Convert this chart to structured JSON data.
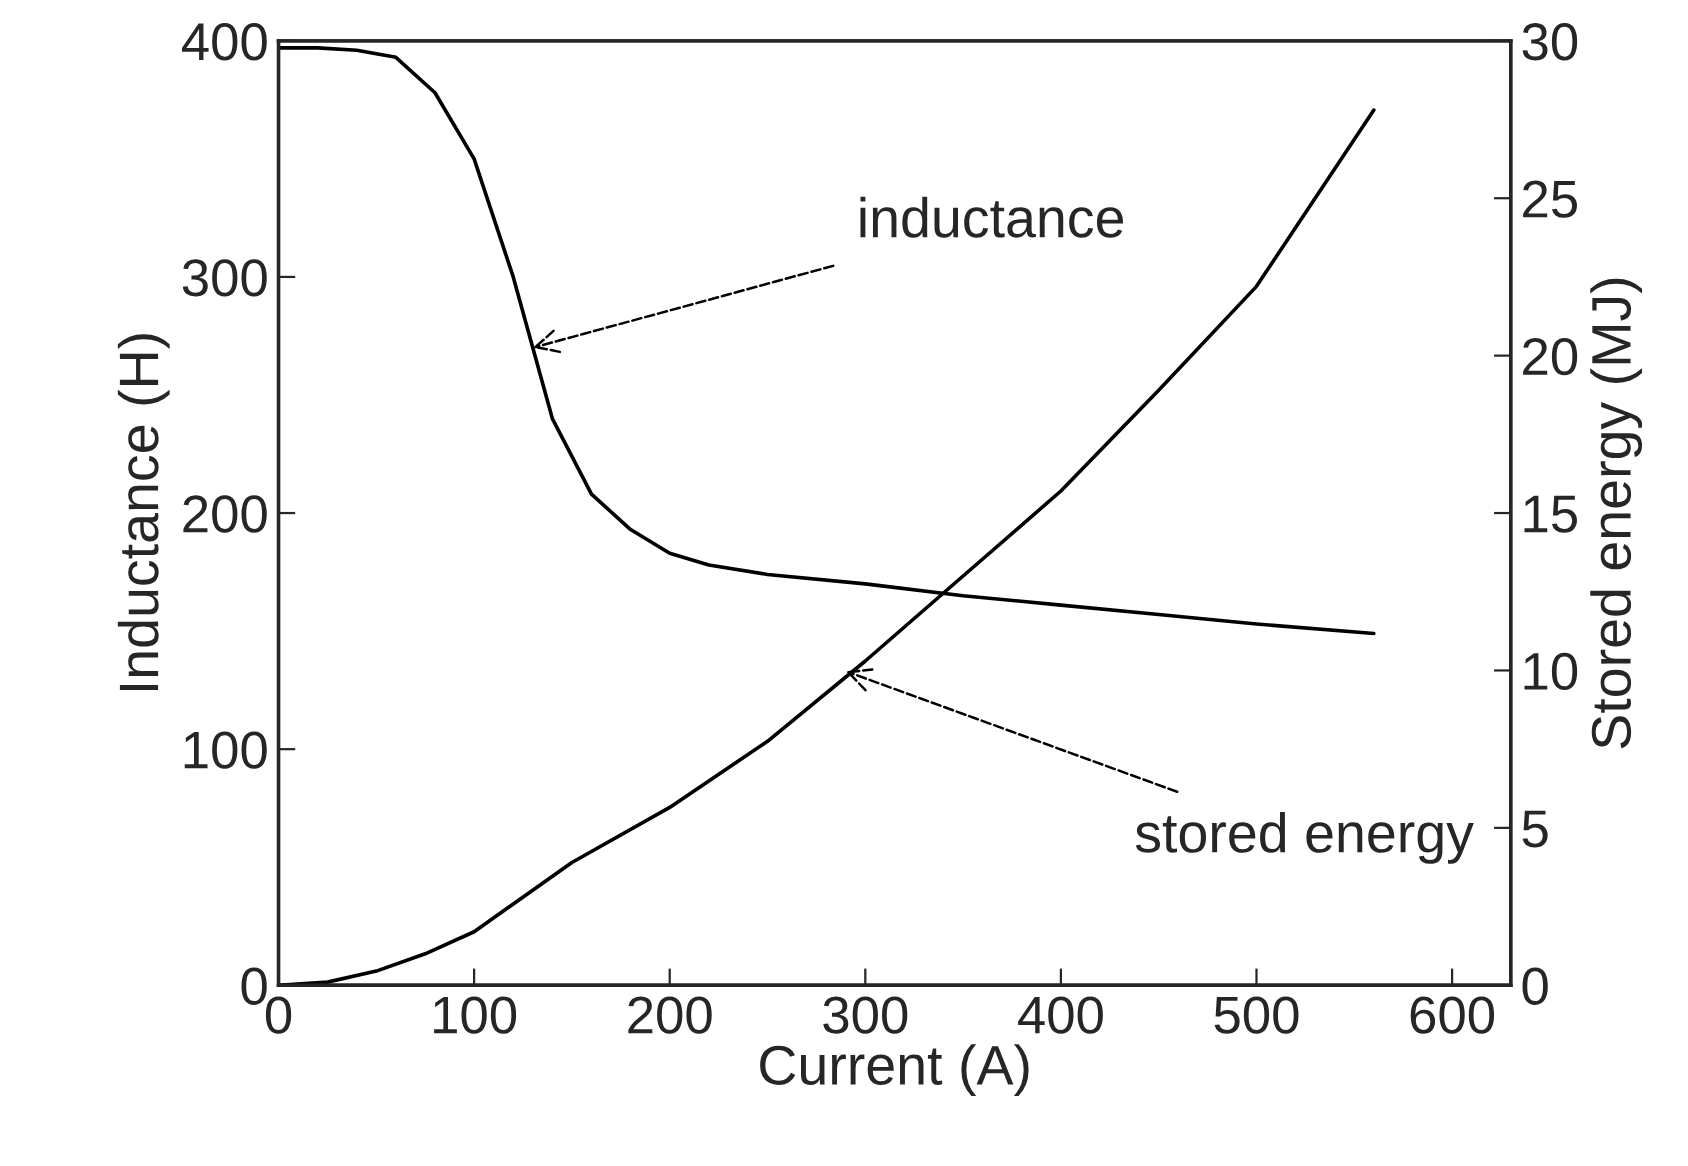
{
  "chart_data": {
    "type": "line",
    "xlabel": "Current (A)",
    "ylabel": "Inductance (H)",
    "y2label": "Stored energy (MJ)",
    "xlim": [
      0,
      630
    ],
    "xticks": [
      0,
      100,
      200,
      300,
      400,
      500,
      600
    ],
    "ylim": [
      0,
      400
    ],
    "yticks": [
      0,
      100,
      200,
      300,
      400
    ],
    "y2lim": [
      0,
      30
    ],
    "y2ticks": [
      0,
      5,
      10,
      15,
      20,
      25,
      30
    ],
    "grid": false,
    "legend": false,
    "marker": "none",
    "line_style": "solid",
    "series": [
      {
        "color": "#000000",
        "axis": "y",
        "x": [
          0,
          20,
          40,
          60,
          80,
          100,
          120,
          130,
          140,
          160,
          180,
          200,
          220,
          250,
          300,
          350,
          400,
          450,
          500,
          560
        ],
        "values": [
          397,
          397,
          396,
          393,
          378,
          350,
          300,
          270,
          240,
          208,
          193,
          183,
          178,
          174,
          170,
          165,
          161,
          157,
          153,
          149
        ]
      },
      {
        "color": "#000000",
        "axis": "y2",
        "x": [
          0,
          25,
          50,
          75,
          100,
          150,
          200,
          250,
          300,
          350,
          400,
          450,
          500,
          560
        ],
        "values": [
          0,
          0.1,
          0.45,
          1.0,
          1.7,
          3.9,
          5.65,
          7.75,
          10.3,
          13.0,
          15.7,
          18.9,
          22.2,
          27.8
        ]
      }
    ],
    "annotations": [
      {
        "text": "inductance",
        "x": 130,
        "y": 270
      },
      {
        "text": "stored energy",
        "x": 290,
        "y": 133
      }
    ]
  }
}
